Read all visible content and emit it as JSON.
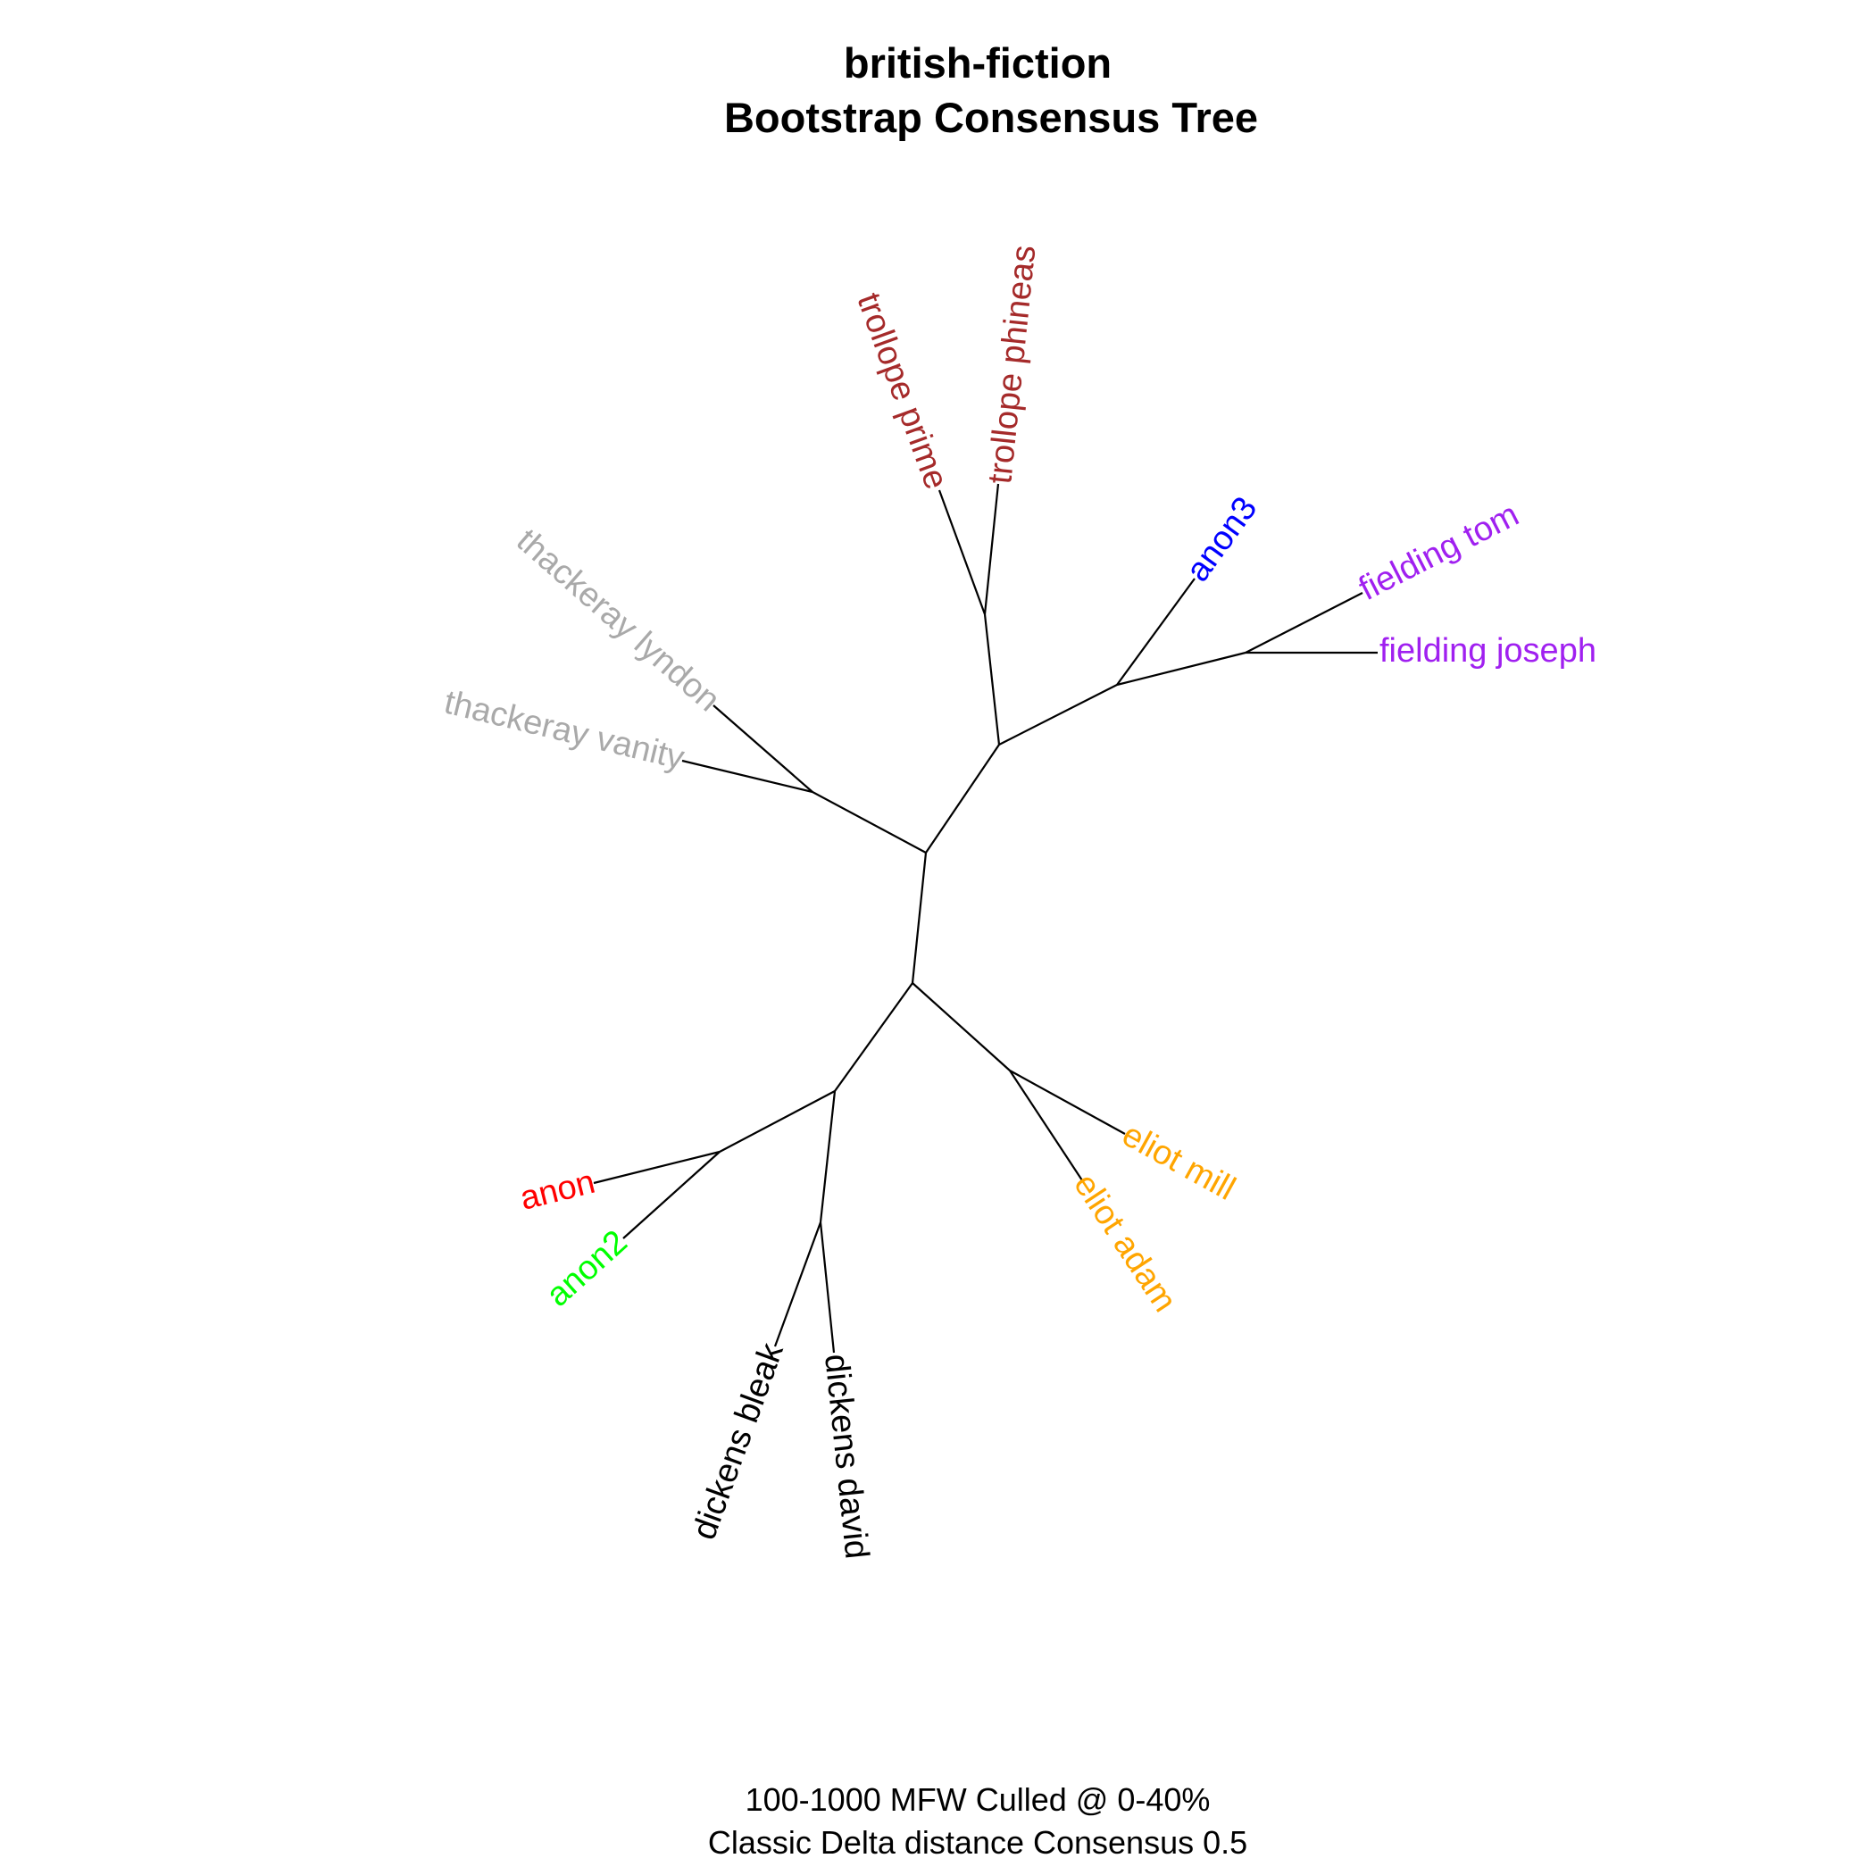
{
  "title": {
    "line1": "british-fiction",
    "line2": "Bootstrap Consensus Tree"
  },
  "caption": {
    "line1": "100-1000 MFW  Culled @ 0-40%",
    "line2": "Classic Delta distance Consensus 0.5"
  },
  "tree": {
    "type": "unrooted",
    "tips": [
      {
        "id": "trollope-phineas",
        "label": "trollope phineas",
        "color": "#A52A2A"
      },
      {
        "id": "trollope-prime",
        "label": "trollope prime",
        "color": "#A52A2A"
      },
      {
        "id": "anon3",
        "label": "anon3",
        "color": "#0000FF"
      },
      {
        "id": "fielding-tom",
        "label": "fielding tom",
        "color": "#A020F0"
      },
      {
        "id": "fielding-joseph",
        "label": "fielding joseph",
        "color": "#A020F0"
      },
      {
        "id": "thackeray-lyndon",
        "label": "thackeray lyndon",
        "color": "#A9A9A9"
      },
      {
        "id": "thackeray-vanity",
        "label": "thackeray vanity",
        "color": "#A9A9A9"
      },
      {
        "id": "eliot-mill",
        "label": "eliot mill",
        "color": "#FFA500"
      },
      {
        "id": "eliot-adam",
        "label": "eliot adam",
        "color": "#FFA500"
      },
      {
        "id": "anon",
        "label": "anon",
        "color": "#FF0000"
      },
      {
        "id": "anon2",
        "label": "anon2",
        "color": "#00FF00"
      },
      {
        "id": "dickens-bleak",
        "label": "dickens bleak",
        "color": "#000000"
      },
      {
        "id": "dickens-david",
        "label": "dickens david",
        "color": "#000000"
      }
    ]
  }
}
